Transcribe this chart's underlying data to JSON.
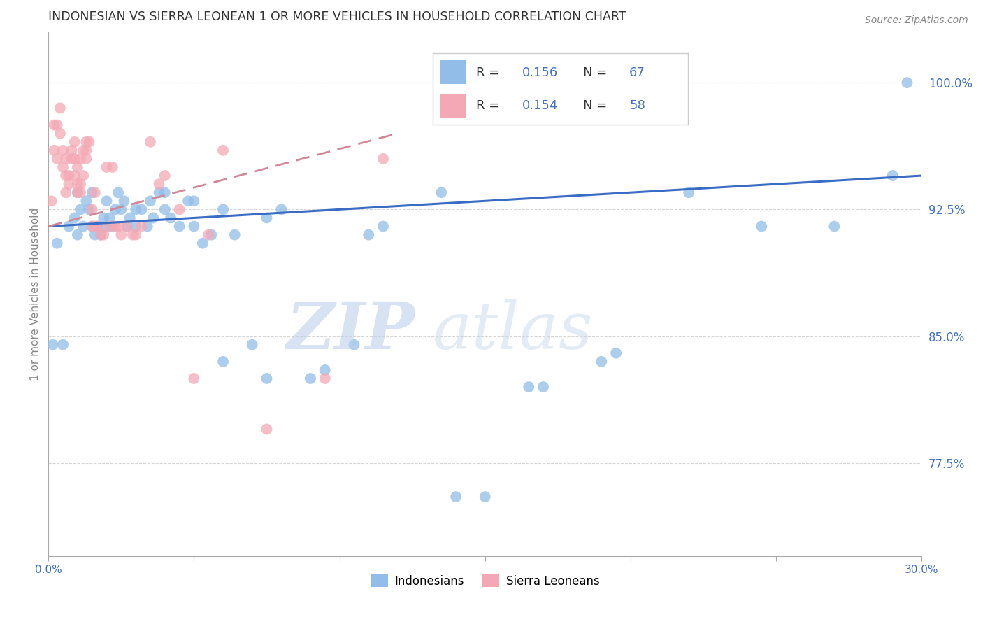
{
  "title": "INDONESIAN VS SIERRA LEONEAN 1 OR MORE VEHICLES IN HOUSEHOLD CORRELATION CHART",
  "source": "Source: ZipAtlas.com",
  "ylabel": "1 or more Vehicles in Household",
  "yticks": [
    77.5,
    85.0,
    92.5,
    100.0
  ],
  "xmin": 0.0,
  "xmax": 30.0,
  "ymin": 72.0,
  "ymax": 103.0,
  "legend_label1": "Indonesians",
  "legend_label2": "Sierra Leoneans",
  "color_blue": "#92BDE8",
  "color_pink": "#F4A8B5",
  "color_blue_line": "#3A6CC4",
  "color_pink_line": "#D08898",
  "color_text_blue": "#4472C4",
  "watermark_zip": "ZIP",
  "watermark_atlas": "atlas",
  "indonesian_x": [
    0.15,
    0.3,
    0.5,
    0.7,
    0.9,
    1.0,
    1.1,
    1.2,
    1.3,
    1.4,
    1.5,
    1.6,
    1.7,
    1.8,
    1.9,
    2.0,
    2.1,
    2.2,
    2.3,
    2.5,
    2.6,
    2.7,
    2.8,
    3.0,
    3.2,
    3.4,
    3.6,
    3.8,
    4.0,
    4.2,
    4.5,
    4.8,
    5.0,
    5.3,
    5.6,
    6.0,
    6.4,
    7.0,
    7.5,
    8.0,
    9.0,
    10.5,
    11.5,
    13.5,
    15.0,
    17.0,
    19.5,
    22.0,
    24.5,
    27.0,
    29.0,
    1.0,
    1.5,
    2.0,
    2.4,
    3.0,
    3.5,
    4.0,
    5.0,
    6.0,
    7.5,
    9.5,
    11.0,
    14.0,
    16.5,
    19.0,
    29.5
  ],
  "indonesian_y": [
    84.5,
    90.5,
    84.5,
    91.5,
    92.0,
    91.0,
    92.5,
    91.5,
    93.0,
    92.5,
    91.5,
    91.0,
    91.5,
    91.0,
    92.0,
    91.5,
    92.0,
    91.5,
    92.5,
    92.5,
    93.0,
    91.5,
    92.0,
    91.5,
    92.5,
    91.5,
    92.0,
    93.5,
    92.5,
    92.0,
    91.5,
    93.0,
    91.5,
    90.5,
    91.0,
    92.5,
    91.0,
    84.5,
    92.0,
    92.5,
    82.5,
    84.5,
    91.5,
    93.5,
    75.5,
    82.0,
    84.0,
    93.5,
    91.5,
    91.5,
    94.5,
    93.5,
    93.5,
    93.0,
    93.5,
    92.5,
    93.0,
    93.5,
    93.0,
    83.5,
    82.5,
    83.0,
    91.0,
    75.5,
    82.0,
    83.5,
    100.0
  ],
  "sierra_x": [
    0.1,
    0.2,
    0.3,
    0.3,
    0.4,
    0.5,
    0.5,
    0.6,
    0.6,
    0.7,
    0.7,
    0.8,
    0.8,
    0.9,
    0.9,
    1.0,
    1.0,
    1.0,
    1.1,
    1.1,
    1.2,
    1.2,
    1.3,
    1.3,
    1.4,
    1.5,
    1.5,
    1.6,
    1.7,
    1.8,
    1.9,
    2.0,
    2.1,
    2.2,
    2.3,
    2.4,
    2.5,
    2.7,
    2.9,
    3.0,
    3.2,
    3.5,
    3.8,
    4.0,
    4.5,
    5.0,
    5.5,
    6.0,
    7.5,
    9.5,
    11.5,
    0.2,
    0.4,
    0.6,
    0.9,
    1.1,
    1.3,
    1.6
  ],
  "sierra_y": [
    93.0,
    96.0,
    97.5,
    95.5,
    98.5,
    96.0,
    95.0,
    94.5,
    95.5,
    94.0,
    94.5,
    95.5,
    96.0,
    94.5,
    95.5,
    93.5,
    94.0,
    95.0,
    94.0,
    95.5,
    94.5,
    96.0,
    95.5,
    96.5,
    96.5,
    91.5,
    92.5,
    91.5,
    91.5,
    91.0,
    91.0,
    95.0,
    91.5,
    95.0,
    91.5,
    91.5,
    91.0,
    91.5,
    91.0,
    91.0,
    91.5,
    96.5,
    94.0,
    94.5,
    92.5,
    82.5,
    91.0,
    96.0,
    79.5,
    82.5,
    95.5,
    97.5,
    97.0,
    93.5,
    96.5,
    93.5,
    96.0,
    93.5
  ],
  "blue_line_y0": 91.5,
  "blue_line_y1": 94.5,
  "pink_line_y0": 91.5,
  "pink_line_y1": 97.0,
  "pink_line_xmax": 12.0
}
